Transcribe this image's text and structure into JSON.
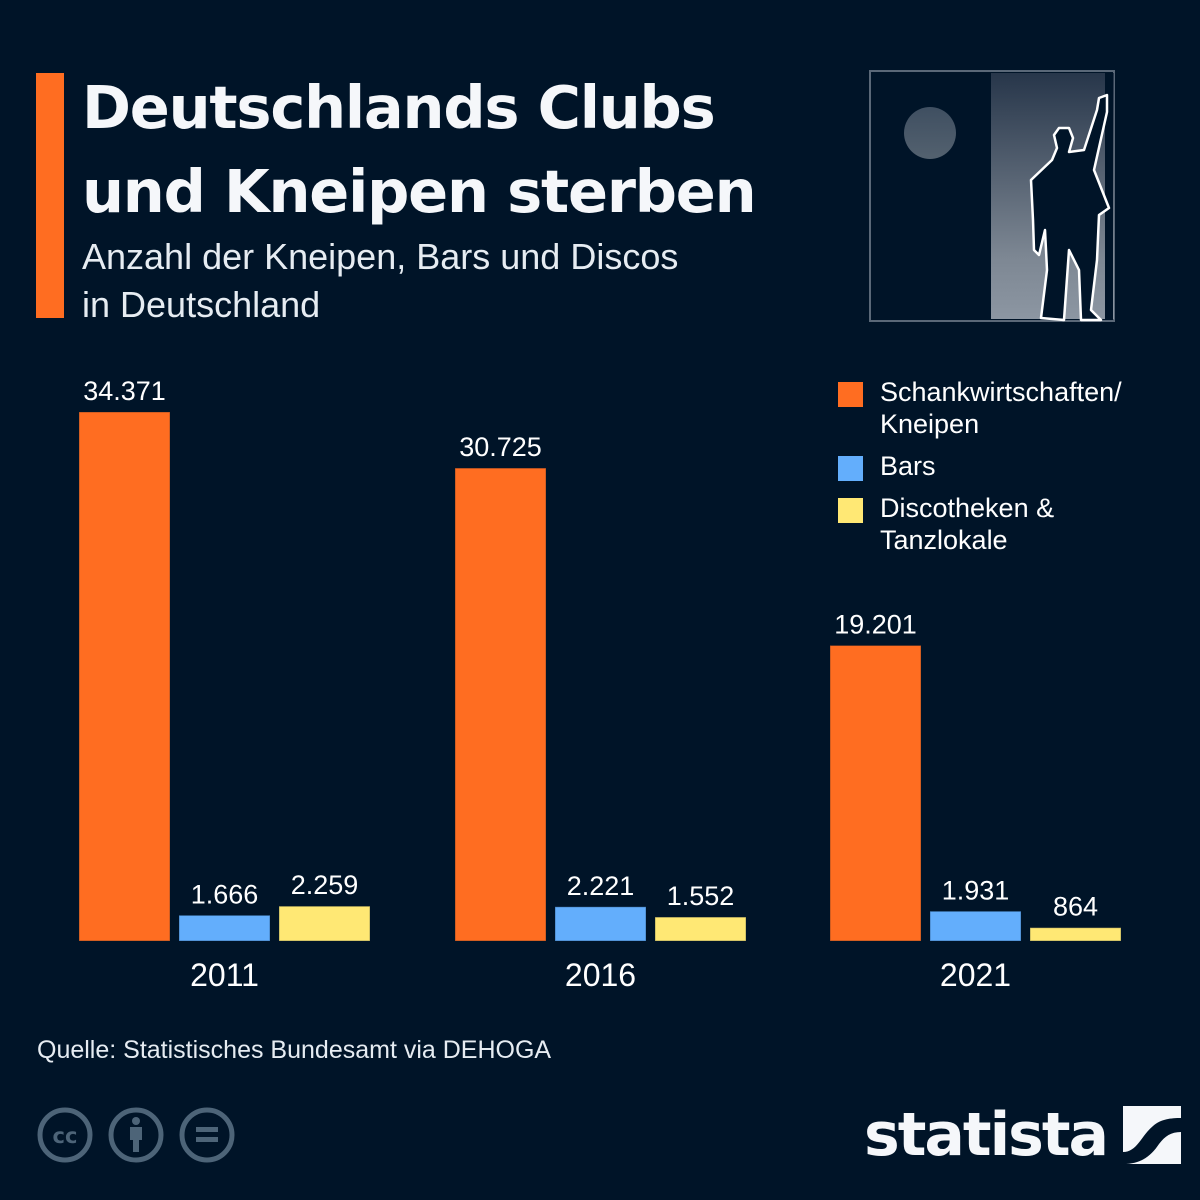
{
  "header": {
    "title_line1": "Deutschlands Clubs",
    "title_line2": "und Kneipen sterben",
    "subtitle_line1": "Anzahl der Kneipen, Bars und Discos",
    "subtitle_line2": "in Deutschland"
  },
  "illustration": {
    "icon": "person-at-door-illustration"
  },
  "legend": {
    "items": [
      {
        "label_line1": "Schankwirtschaften/",
        "label_line2": "Kneipen",
        "color": "#ff6d21"
      },
      {
        "label_line1": "Bars",
        "label_line2": "",
        "color": "#63aefc"
      },
      {
        "label_line1": "Discotheken &",
        "label_line2": "Tanzlokale",
        "color": "#ffe874"
      }
    ]
  },
  "footer": {
    "source": "Quelle: Statistisches Bundesamt via DEHOGA",
    "license_icons": [
      "cc-icon",
      "attribution-icon",
      "no-derivatives-icon"
    ],
    "brand": "statista"
  },
  "colors": {
    "background": "#001428",
    "accent": "#ff6d21",
    "text": "#ffffff",
    "muted_icon": "#4d6478"
  },
  "chart_data": {
    "type": "bar",
    "title": "Deutschlands Clubs und Kneipen sterben",
    "subtitle": "Anzahl der Kneipen, Bars und Discos in Deutschland",
    "xlabel": "",
    "ylabel": "",
    "categories": [
      "2011",
      "2016",
      "2021"
    ],
    "series": [
      {
        "name": "Schankwirtschaften/Kneipen",
        "color": "#ff6d21",
        "values": [
          34371,
          30725,
          19201
        ],
        "labels": [
          "34.371",
          "30.725",
          "19.201"
        ]
      },
      {
        "name": "Bars",
        "color": "#63aefc",
        "values": [
          1666,
          2221,
          1931
        ],
        "labels": [
          "1.666",
          "2.221",
          "1.931"
        ]
      },
      {
        "name": "Discotheken & Tanzlokale",
        "color": "#ffe874",
        "values": [
          2259,
          1552,
          864
        ],
        "labels": [
          "2.259",
          "1.552",
          "864"
        ]
      }
    ],
    "ylim": [
      0,
      34371
    ],
    "grid": false,
    "legend_position": "top-right"
  }
}
